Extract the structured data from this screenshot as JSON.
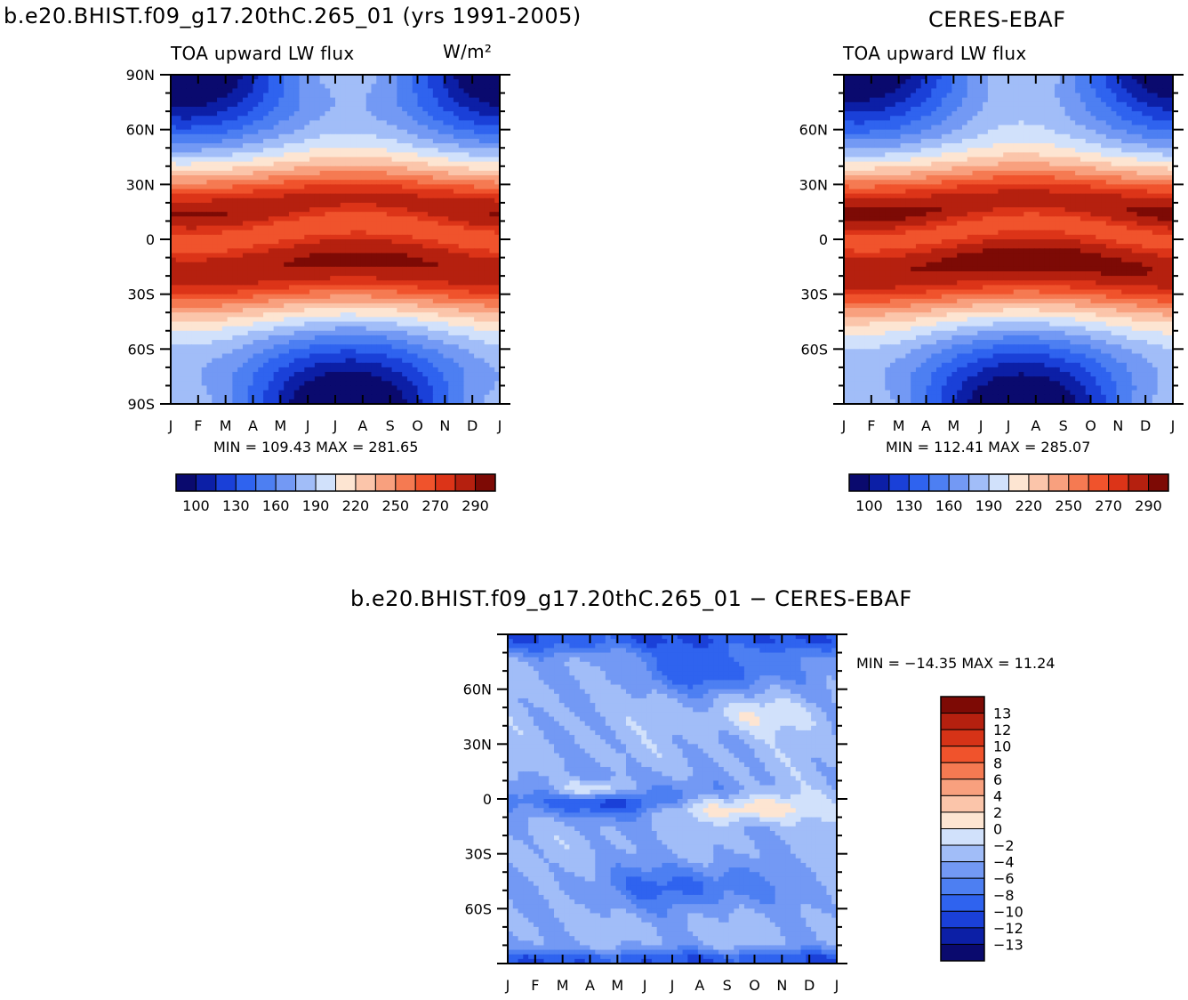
{
  "panels": {
    "model": {
      "title": "b.e20.BHIST.f09_g17.20thC.265_01 (yrs 1991-2005)",
      "subtitle": "TOA upward LW flux",
      "units": "W/m²",
      "minmax": "MIN =  109.43  MAX =  281.65"
    },
    "obs": {
      "title": "CERES-EBAF",
      "subtitle": "TOA upward LW flux",
      "minmax": "MIN =  112.41  MAX =  285.07"
    },
    "diff": {
      "title": "b.e20.BHIST.f09_g17.20thC.265_01 − CERES-EBAF",
      "minmax": "MIN = −14.35 MAX =   11.24"
    }
  },
  "chart_data": [
    {
      "type": "heatmap",
      "id": "model",
      "title": "b.e20.BHIST.f09_g17.20thC.265_01 (yrs 1991-2005)",
      "subtitle": "TOA upward LW flux",
      "units": "W/m2",
      "x": [
        "J",
        "F",
        "M",
        "A",
        "M",
        "J",
        "J",
        "A",
        "S",
        "O",
        "N",
        "D",
        "J"
      ],
      "y_ticks": [
        "90N",
        "60N",
        "30N",
        "0",
        "30S",
        "60S",
        "90S"
      ],
      "ylim": [
        -90,
        90
      ],
      "min": 109.43,
      "max": 281.65,
      "colorbar_labels": [
        "100",
        "130",
        "160",
        "190",
        "220",
        "250",
        "270",
        "290"
      ]
    },
    {
      "type": "heatmap",
      "id": "obs",
      "title": "CERES-EBAF",
      "subtitle": "TOA upward LW flux",
      "x": [
        "J",
        "F",
        "M",
        "A",
        "M",
        "J",
        "J",
        "A",
        "S",
        "O",
        "N",
        "D",
        "J"
      ],
      "y_ticks": [
        "60N",
        "30N",
        "0",
        "30S",
        "60S"
      ],
      "ylim": [
        -90,
        90
      ],
      "min": 112.41,
      "max": 285.07,
      "colorbar_labels": [
        "100",
        "130",
        "160",
        "190",
        "220",
        "250",
        "270",
        "290"
      ]
    },
    {
      "type": "heatmap",
      "id": "diff",
      "title": "b.e20.BHIST.f09_g17.20thC.265_01 − CERES-EBAF",
      "x": [
        "J",
        "F",
        "M",
        "A",
        "M",
        "J",
        "J",
        "A",
        "S",
        "O",
        "N",
        "D",
        "J"
      ],
      "y_ticks": [
        "60N",
        "30N",
        "0",
        "30S",
        "60S"
      ],
      "ylim": [
        -90,
        90
      ],
      "min": -14.35,
      "max": 11.24,
      "colorbar_labels": [
        "13",
        "12",
        "10",
        "8",
        "6",
        "4",
        "2",
        "0",
        "−2",
        "−4",
        "−6",
        "−8",
        "−10",
        "−12",
        "−13"
      ]
    }
  ],
  "colors": {
    "abs_scale": [
      "#0a0a6e",
      "#0c1fa6",
      "#1a40d8",
      "#2f63ef",
      "#4d7ff2",
      "#7399f4",
      "#a1bdf8",
      "#d1e1fb",
      "#fde5d2",
      "#fbc5aa",
      "#f8a07e",
      "#f57a52",
      "#f0532c",
      "#dc3418",
      "#b5200f",
      "#7d0a05"
    ],
    "diff_scale": [
      "#7d0a05",
      "#b5200f",
      "#d63317",
      "#f0532c",
      "#f57a52",
      "#f8a07e",
      "#fbc5aa",
      "#fde5d2",
      "#d1e1fb",
      "#a1bdf8",
      "#7399f4",
      "#4d7ff2",
      "#2f63ef",
      "#1a40d8",
      "#0c1fa6",
      "#0a0a6e"
    ]
  }
}
